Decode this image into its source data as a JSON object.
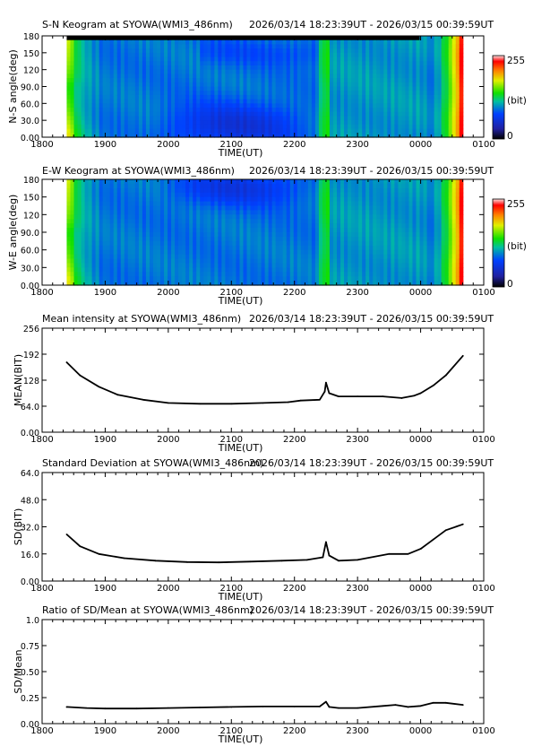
{
  "time_range": "2026/03/14 18:23:39UT - 2026/03/15 00:39:59UT",
  "x_axis": {
    "label": "TIME(UT)",
    "ticks": [
      "1800",
      "1900",
      "2000",
      "2100",
      "2200",
      "2300",
      "0000",
      "0100"
    ]
  },
  "keograms": [
    {
      "title": "S-N Keogram at SYOWA(WMI3_486nm)",
      "ylabel": "N-S angle(deg)",
      "yticks": [
        "0.00",
        "30.0",
        "60.0",
        "90.0",
        "120",
        "150",
        "180"
      ],
      "colorbar": {
        "max_label": "255",
        "unit_label": "(bit)",
        "min_label": "0"
      }
    },
    {
      "title": "E-W Keogram at SYOWA(WMI3_486nm)",
      "ylabel": "W-E angle(deg)",
      "yticks": [
        "0.00",
        "30.0",
        "60.0",
        "90.0",
        "120",
        "150",
        "180"
      ],
      "colorbar": {
        "max_label": "255",
        "unit_label": "(bit)",
        "min_label": "0"
      }
    }
  ],
  "chart_data": [
    {
      "type": "heatmap",
      "title": "S-N Keogram at SYOWA(WMI3_486nm)",
      "xlabel": "TIME(UT)",
      "ylabel": "N-S angle(deg)",
      "xlim": [
        18.0,
        25.0
      ],
      "ylim": [
        0,
        180
      ],
      "data_time_range_hours": [
        18.39,
        24.67
      ],
      "color_scale": {
        "min": 0,
        "max": 255,
        "colormap": "rainbow"
      }
    },
    {
      "type": "heatmap",
      "title": "E-W Keogram at SYOWA(WMI3_486nm)",
      "xlabel": "TIME(UT)",
      "ylabel": "W-E angle(deg)",
      "xlim": [
        18.0,
        25.0
      ],
      "ylim": [
        0,
        180
      ],
      "data_time_range_hours": [
        18.39,
        24.67
      ],
      "color_scale": {
        "min": 0,
        "max": 255,
        "colormap": "rainbow"
      }
    },
    {
      "type": "line",
      "title": "Mean intensity at SYOWA(WMI3_486nm)",
      "xlabel": "TIME(UT)",
      "ylabel": "MEAN(BIT)",
      "xlim": [
        18.0,
        25.0
      ],
      "ylim": [
        0,
        256
      ],
      "yticks": [
        "0.00",
        "64.0",
        "128",
        "192",
        "256"
      ],
      "x": [
        18.39,
        18.6,
        18.9,
        19.2,
        19.6,
        20.0,
        20.5,
        21.0,
        21.5,
        21.9,
        22.1,
        22.4,
        22.48,
        22.5,
        22.55,
        22.7,
        23.0,
        23.4,
        23.7,
        23.9,
        24.0,
        24.2,
        24.4,
        24.67
      ],
      "values": [
        172,
        140,
        112,
        92,
        80,
        72,
        70,
        70,
        72,
        74,
        78,
        80,
        100,
        122,
        96,
        88,
        88,
        88,
        84,
        90,
        96,
        115,
        140,
        188
      ]
    },
    {
      "type": "line",
      "title": "Standard Deviation at SYOWA(WMI3_486nm)",
      "xlabel": "TIME(UT)",
      "ylabel": "SD(BIT)",
      "xlim": [
        18.0,
        25.0
      ],
      "ylim": [
        0,
        64
      ],
      "yticks": [
        "0.00",
        "16.0",
        "32.0",
        "48.0",
        "64.0"
      ],
      "x": [
        18.39,
        18.6,
        18.9,
        19.3,
        19.8,
        20.3,
        20.8,
        21.3,
        21.8,
        22.2,
        22.45,
        22.5,
        22.55,
        22.7,
        23.0,
        23.5,
        23.8,
        24.0,
        24.2,
        24.4,
        24.67
      ],
      "values": [
        27.5,
        20.5,
        16,
        13.5,
        12,
        11.2,
        11,
        11.5,
        12,
        12.5,
        14,
        23,
        15,
        12,
        12.5,
        16,
        16,
        19,
        24.5,
        30,
        33.5
      ]
    },
    {
      "type": "line",
      "title": "Ratio of SD/Mean at SYOWA(WMI3_486nm)",
      "xlabel": "TIME(UT)",
      "ylabel": "SD/Mean",
      "xlim": [
        18.0,
        25.0
      ],
      "ylim": [
        0,
        1.0
      ],
      "yticks": [
        "0.00",
        "0.25",
        "0.50",
        "0.75",
        "1.0"
      ],
      "x": [
        18.39,
        18.7,
        19.0,
        19.5,
        20.0,
        20.5,
        21.0,
        21.5,
        22.0,
        22.4,
        22.5,
        22.55,
        22.7,
        23.0,
        23.4,
        23.6,
        23.8,
        24.0,
        24.2,
        24.4,
        24.67
      ],
      "values": [
        0.16,
        0.15,
        0.145,
        0.145,
        0.15,
        0.155,
        0.16,
        0.165,
        0.165,
        0.165,
        0.21,
        0.16,
        0.15,
        0.15,
        0.17,
        0.18,
        0.16,
        0.17,
        0.2,
        0.2,
        0.18
      ]
    }
  ]
}
